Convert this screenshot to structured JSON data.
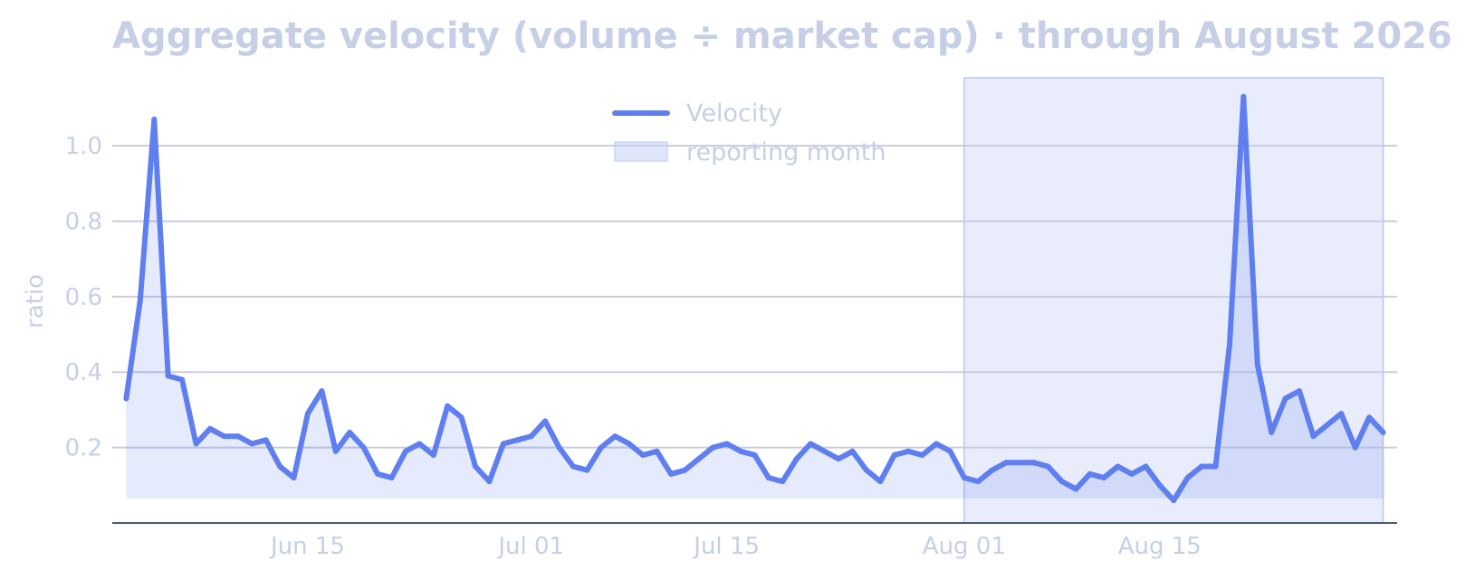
{
  "chart_data": {
    "type": "line",
    "title": "Aggregate velocity (volume ÷ market cap) · through August 2026",
    "ylabel": "ratio",
    "xlabel": "",
    "x_start": "2026-06-02",
    "x_end": "2026-08-31",
    "xlim": [
      "2026-06-01",
      "2026-09-01"
    ],
    "ylim": [
      0.0,
      1.18
    ],
    "fill_baseline": 0.065,
    "x_ticks": [
      {
        "date": "2026-06-15",
        "label": "Jun 15"
      },
      {
        "date": "2026-07-01",
        "label": "Jul 01"
      },
      {
        "date": "2026-07-15",
        "label": "Jul 15"
      },
      {
        "date": "2026-08-01",
        "label": "Aug 01"
      },
      {
        "date": "2026-08-15",
        "label": "Aug 15"
      }
    ],
    "y_ticks": [
      {
        "value": 0.2,
        "label": "0.2"
      },
      {
        "value": 0.4,
        "label": "0.4"
      },
      {
        "value": 0.6,
        "label": "0.6"
      },
      {
        "value": 0.8,
        "label": "0.8"
      },
      {
        "value": 1.0,
        "label": "1.0"
      }
    ],
    "grid": true,
    "legend_position": "top-center",
    "series": [
      {
        "name": "Velocity",
        "color": "#5f7ff0",
        "values": [
          0.33,
          0.59,
          1.07,
          0.39,
          0.38,
          0.21,
          0.25,
          0.23,
          0.23,
          0.21,
          0.22,
          0.15,
          0.12,
          0.29,
          0.35,
          0.19,
          0.24,
          0.2,
          0.13,
          0.12,
          0.19,
          0.21,
          0.18,
          0.31,
          0.28,
          0.15,
          0.11,
          0.21,
          0.22,
          0.23,
          0.27,
          0.2,
          0.15,
          0.14,
          0.2,
          0.23,
          0.21,
          0.18,
          0.19,
          0.13,
          0.14,
          0.17,
          0.2,
          0.21,
          0.19,
          0.18,
          0.12,
          0.11,
          0.17,
          0.21,
          0.19,
          0.17,
          0.19,
          0.14,
          0.11,
          0.18,
          0.19,
          0.18,
          0.21,
          0.19,
          0.12,
          0.11,
          0.14,
          0.16,
          0.16,
          0.16,
          0.15,
          0.11,
          0.09,
          0.13,
          0.12,
          0.15,
          0.13,
          0.15,
          0.1,
          0.06,
          0.12,
          0.15,
          0.15,
          0.47,
          1.13,
          0.42,
          0.24,
          0.33,
          0.35,
          0.23,
          0.26,
          0.29,
          0.2,
          0.28,
          0.24
        ]
      }
    ],
    "shaded_region": {
      "name": "reporting month",
      "start": "2026-08-01",
      "end": "2026-08-31",
      "color": "#c5cff5"
    }
  }
}
